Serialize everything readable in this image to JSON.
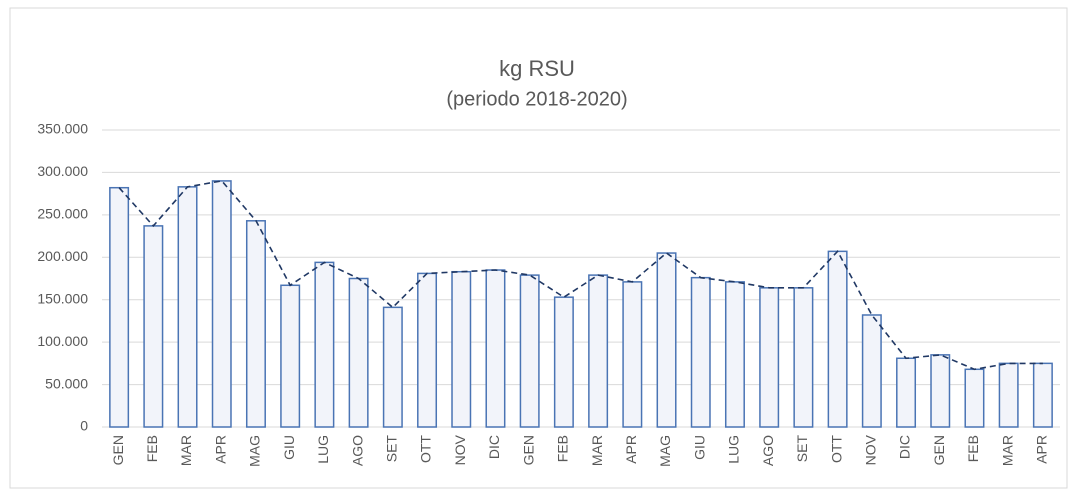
{
  "chart_data": {
    "type": "bar",
    "title": "kg RSU",
    "subtitle": "(periodo 2018-2020)",
    "categories": [
      "GEN",
      "FEB",
      "MAR",
      "APR",
      "MAG",
      "GIU",
      "LUG",
      "AGO",
      "SET",
      "OTT",
      "NOV",
      "DIC",
      "GEN",
      "FEB",
      "MAR",
      "APR",
      "MAG",
      "GIU",
      "LUG",
      "AGO",
      "SET",
      "OTT",
      "NOV",
      "DIC",
      "GEN",
      "FEB",
      "MAR",
      "APR"
    ],
    "values": [
      282000,
      237000,
      283000,
      290000,
      243000,
      167000,
      194000,
      175000,
      141000,
      181000,
      183000,
      185000,
      179000,
      153000,
      179000,
      171000,
      205000,
      176000,
      171000,
      164000,
      164000,
      207000,
      132000,
      81000,
      85000,
      68000,
      75000,
      75000
    ],
    "color": "#f2f4fa",
    "edge_color": "#4a74b4",
    "line_color": "#203864",
    "line_dashed": true,
    "ylim": [
      0,
      350000
    ],
    "yticks": [
      0,
      {
        "value": 50000,
        "label": "50.000"
      },
      {
        "value": 100000,
        "label": "100.000"
      },
      {
        "value": 150000,
        "label": "150.000"
      },
      {
        "value": 200000,
        "label": "200.000"
      },
      {
        "value": 250000,
        "label": "250.000"
      },
      {
        "value": 300000,
        "label": "300.000"
      },
      {
        "value": 350000,
        "label": "350.000"
      }
    ],
    "grid": true
  }
}
